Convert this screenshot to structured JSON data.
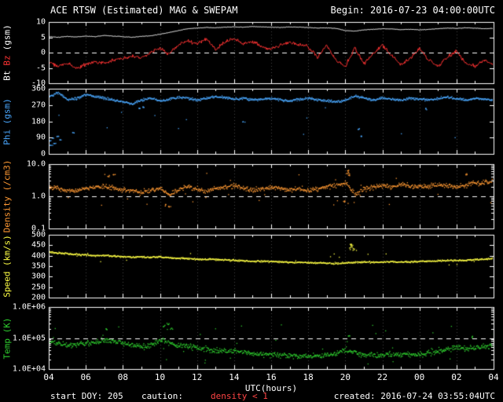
{
  "header": {
    "title": "ACE RTSW (Estimated) MAG & SWEPAM",
    "begin": "Begin: 2016-07-23 04:00:00UTC"
  },
  "footer": {
    "start_doy": "start DOY: 205",
    "caution": "caution:",
    "density_note": "density < 1",
    "created": "created: 2016-07-24 03:55:04UTC"
  },
  "colors": {
    "background": "#000000",
    "frame": "#ffffff",
    "grid": "rgba(255,255,255,0.28)",
    "bt": "#ffffff",
    "bz": "#ff3333",
    "phi": "#4aa8ff",
    "density": "#ff9933",
    "speed": "#ffff44",
    "temp": "#2ecc2e",
    "caution_text": "#ff4444"
  },
  "x_axis": {
    "start": 4,
    "end": 28,
    "tick_step": 2,
    "tick_labels": [
      "04",
      "06",
      "08",
      "10",
      "12",
      "14",
      "16",
      "18",
      "20",
      "22",
      "00",
      "02",
      "04"
    ],
    "label": "UTC(hours)",
    "x_hours": [
      4,
      4.5,
      5,
      5.5,
      6,
      6.5,
      7,
      7.5,
      8,
      8.5,
      9,
      9.5,
      10,
      10.5,
      11,
      11.5,
      12,
      12.5,
      13,
      13.5,
      14,
      14.5,
      15,
      15.5,
      16,
      16.5,
      17,
      17.5,
      18,
      18.5,
      19,
      19.5,
      20,
      20.5,
      21,
      21.5,
      22,
      22.5,
      23,
      23.5,
      24,
      24.5,
      25,
      25.5,
      26,
      26.5,
      27,
      27.5,
      28
    ]
  },
  "chart_data": [
    {
      "id": "bt-bz",
      "type": "line",
      "scale": "linear",
      "ylim": [
        -10,
        10
      ],
      "yticks": [
        10,
        5,
        0,
        -5,
        -10
      ],
      "ytick_labels": [
        "10",
        "5",
        "0",
        "-5",
        "-10"
      ],
      "ref_lines": [
        0
      ],
      "axis_title": [
        {
          "text": "Bt",
          "color": "#ffffff"
        },
        {
          "text": "Bz",
          "color": "#ff3333"
        },
        {
          "text": "(gsm)",
          "color": "#ffffff"
        }
      ],
      "series": [
        {
          "name": "Bz",
          "color": "#ff3333",
          "render": "line",
          "jitter": 0.7,
          "values": [
            -3.0,
            -4.5,
            -3.5,
            -5.0,
            -4.0,
            -3.0,
            -3.5,
            -2.5,
            -2.0,
            -1.0,
            -1.5,
            0.0,
            1.5,
            -0.5,
            2.5,
            4.0,
            3.0,
            4.5,
            1.0,
            3.5,
            4.5,
            3.0,
            3.5,
            2.0,
            1.0,
            2.5,
            3.5,
            2.5,
            2.0,
            -1.5,
            2.5,
            -2.5,
            -4.5,
            1.5,
            -3.5,
            -0.5,
            2.5,
            -1.0,
            -4.0,
            -2.0,
            1.5,
            -2.5,
            -4.5,
            -1.5,
            0.5,
            -3.5,
            -4.5,
            -2.5,
            -4.0
          ]
        },
        {
          "name": "Bt",
          "color": "#ffffff",
          "render": "line",
          "jitter": 0.1,
          "values": [
            5.2,
            5.0,
            5.3,
            5.1,
            5.4,
            5.2,
            5.6,
            5.4,
            5.2,
            5.0,
            5.3,
            5.5,
            6.0,
            6.6,
            7.2,
            7.8,
            8.0,
            8.2,
            8.1,
            8.3,
            8.4,
            8.3,
            8.5,
            8.4,
            8.3,
            8.2,
            8.4,
            8.3,
            8.2,
            8.0,
            8.1,
            7.9,
            7.2,
            7.0,
            7.4,
            7.6,
            7.8,
            7.7,
            7.5,
            7.6,
            7.4,
            7.6,
            7.8,
            8.0,
            7.9,
            8.1,
            8.0,
            7.8,
            7.9
          ]
        }
      ]
    },
    {
      "id": "phi",
      "type": "scatter",
      "scale": "linear",
      "ylim": [
        0,
        360
      ],
      "yticks": [
        360,
        270,
        180,
        90,
        0
      ],
      "ytick_labels": [
        "360",
        "270",
        "180",
        "90",
        "0"
      ],
      "ref_lines": [],
      "axis_title": [
        {
          "text": "Phi (gsm)",
          "color": "#4aa8ff"
        }
      ],
      "series": [
        {
          "name": "Phi",
          "color": "#4aa8ff",
          "render": "scatter",
          "jitter": 8,
          "outlier_rate": 0.012,
          "outlier_min": 80,
          "outlier_max": 260,
          "extras": [
            [
              4.05,
              75
            ],
            [
              4.12,
              50
            ],
            [
              4.2,
              90
            ],
            [
              4.3,
              60
            ],
            [
              4.45,
              100
            ],
            [
              4.6,
              80
            ],
            [
              5.3,
              120
            ],
            [
              8.9,
              250
            ],
            [
              9.05,
              260
            ],
            [
              14.5,
              180
            ],
            [
              20.7,
              140
            ],
            [
              20.85,
              100
            ],
            [
              24.3,
              250
            ]
          ],
          "values": [
            320,
            340,
            300,
            310,
            330,
            320,
            310,
            300,
            290,
            280,
            300,
            310,
            295,
            305,
            315,
            310,
            300,
            310,
            320,
            315,
            305,
            310,
            300,
            305,
            310,
            300,
            295,
            305,
            310,
            300,
            295,
            290,
            300,
            320,
            310,
            300,
            310,
            305,
            300,
            310,
            305,
            300,
            310,
            315,
            305,
            300,
            310,
            305,
            300
          ]
        }
      ]
    },
    {
      "id": "density",
      "type": "scatter",
      "scale": "log",
      "ylim": [
        0.1,
        10
      ],
      "yticks": [
        10,
        1,
        0.1
      ],
      "ytick_labels": [
        "10.0",
        "1.0",
        "0.1"
      ],
      "ref_lines": [
        1
      ],
      "axis_title": [
        {
          "text": "Density (/cm3)",
          "color": "#ff9933"
        }
      ],
      "series": [
        {
          "name": "Density",
          "color": "#ff9933",
          "render": "scatter",
          "jitter": 0.09,
          "outlier_rate": 0.03,
          "outlier_min": 0.5,
          "outlier_max": 6,
          "extras": [
            [
              7.2,
              4.5
            ],
            [
              7.5,
              5.0
            ],
            [
              10.3,
              0.55
            ],
            [
              10.5,
              0.5
            ],
            [
              19.9,
              0.7
            ],
            [
              20.1,
              5.5
            ],
            [
              20.15,
              6.5
            ],
            [
              20.2,
              4.8
            ],
            [
              26.5,
              5.0
            ]
          ],
          "values": [
            2.0,
            1.8,
            1.6,
            1.5,
            1.8,
            2.0,
            2.2,
            1.8,
            1.6,
            1.5,
            1.4,
            1.6,
            1.8,
            1.2,
            1.6,
            2.0,
            1.8,
            1.5,
            1.8,
            2.0,
            2.2,
            1.8,
            1.6,
            1.8,
            2.0,
            1.8,
            1.6,
            1.8,
            1.5,
            1.8,
            2.0,
            2.2,
            2.8,
            1.2,
            1.8,
            2.0,
            2.2,
            2.0,
            2.4,
            2.2,
            2.0,
            2.2,
            2.4,
            2.2,
            2.0,
            2.4,
            2.6,
            2.8,
            3.0
          ]
        }
      ]
    },
    {
      "id": "speed",
      "type": "scatter",
      "scale": "linear",
      "ylim": [
        200,
        500
      ],
      "yticks": [
        500,
        450,
        400,
        350,
        300,
        250,
        200
      ],
      "ytick_labels": [
        "500",
        "450",
        "400",
        "350",
        "300",
        "250",
        "200"
      ],
      "ref_lines": [],
      "axis_title": [
        {
          "text": "Speed (km/s)",
          "color": "#ffff44"
        }
      ],
      "series": [
        {
          "name": "Speed",
          "color": "#ffff44",
          "render": "scatter",
          "jitter": 5,
          "outlier_rate": 0.015,
          "outlier_min": 355,
          "outlier_max": 430,
          "extras": [
            [
              20.25,
              440
            ],
            [
              20.3,
              452
            ],
            [
              20.35,
              446
            ],
            [
              20.4,
              430
            ]
          ],
          "values": [
            420,
            415,
            412,
            408,
            405,
            402,
            405,
            400,
            398,
            395,
            396,
            394,
            398,
            392,
            390,
            388,
            386,
            384,
            385,
            382,
            380,
            378,
            376,
            375,
            374,
            372,
            371,
            370,
            369,
            368,
            366,
            365,
            368,
            370,
            372,
            370,
            373,
            374,
            372,
            373,
            375,
            377,
            378,
            380,
            379,
            381,
            383,
            386,
            390
          ]
        }
      ]
    },
    {
      "id": "temp",
      "type": "scatter",
      "scale": "log",
      "ylim": [
        10000,
        1000000
      ],
      "yticks": [
        1000000,
        100000,
        10000
      ],
      "ytick_labels": [
        "1.0E+06",
        "1.0E+05",
        "1.0E+04"
      ],
      "ref_lines": [
        100000
      ],
      "axis_title": [
        {
          "text": "Temp (K)",
          "color": "#2ecc2e"
        }
      ],
      "series": [
        {
          "name": "Temp",
          "color": "#2ecc2e",
          "render": "scatter",
          "jitter": 0.11,
          "outlier_rate": 0.04,
          "outlier_min": 15000,
          "outlier_max": 300000,
          "extras": [
            [
              7.1,
              200000
            ],
            [
              10.2,
              250000
            ],
            [
              10.4,
              300000
            ],
            [
              10.6,
              200000
            ],
            [
              20.2,
              120000
            ],
            [
              26.8,
              110000
            ]
          ],
          "values": [
            80000,
            70000,
            60000,
            65000,
            70000,
            75000,
            90000,
            80000,
            70000,
            60000,
            55000,
            60000,
            90000,
            70000,
            60000,
            55000,
            50000,
            45000,
            42000,
            40000,
            38000,
            36000,
            34000,
            32000,
            30000,
            30000,
            28000,
            27000,
            26000,
            28000,
            30000,
            32000,
            45000,
            35000,
            30000,
            28000,
            30000,
            32000,
            30000,
            32000,
            30000,
            35000,
            40000,
            45000,
            50000,
            48000,
            52000,
            56000,
            60000
          ]
        }
      ]
    }
  ]
}
